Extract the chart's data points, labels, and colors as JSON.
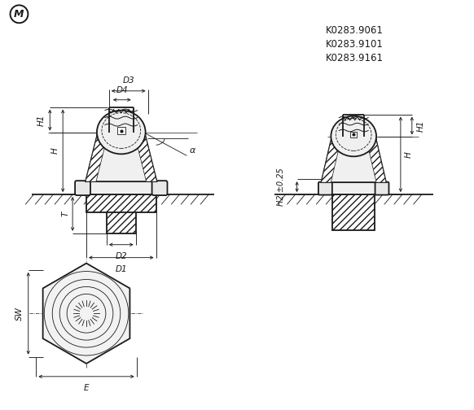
{
  "bg_color": "#ffffff",
  "line_color": "#1a1a1a",
  "part_codes": [
    "K0283.9061",
    "K0283.9101",
    "K0283.9161"
  ],
  "angle_label": "α",
  "M_symbol": "M",
  "dim_labels_right": [
    "H1",
    "H",
    "H2 ±0.25"
  ]
}
